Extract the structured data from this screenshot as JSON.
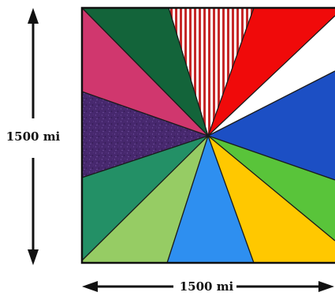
{
  "diagram": {
    "vertical_dimension_label": "1500 mi",
    "horizontal_dimension_label": "1500 mi",
    "center_point": "center-point",
    "wedges": [
      {
        "name": "wedge-dark-green-top-left",
        "color": "#13643a"
      },
      {
        "name": "wedge-red-white-striped-top",
        "color": "#c62828",
        "pattern": "vertical-stripes"
      },
      {
        "name": "wedge-red-top-right",
        "color": "#f00a0a"
      },
      {
        "name": "wedge-white-right",
        "color": "#ffffff"
      },
      {
        "name": "wedge-blue-right",
        "color": "#1c4fc4"
      },
      {
        "name": "wedge-green-lower-right",
        "color": "#59c43a"
      },
      {
        "name": "wedge-yellow-bottom-right",
        "color": "#ffc800"
      },
      {
        "name": "wedge-light-blue-bottom",
        "color": "#2e8ff0"
      },
      {
        "name": "wedge-light-green-bottom-left",
        "color": "#96cc64"
      },
      {
        "name": "wedge-teal-green-left",
        "color": "#239066"
      },
      {
        "name": "wedge-purple-left",
        "color": "#47286e",
        "pattern": "speckled"
      },
      {
        "name": "wedge-magenta-upper-left",
        "color": "#d0376e"
      }
    ]
  }
}
